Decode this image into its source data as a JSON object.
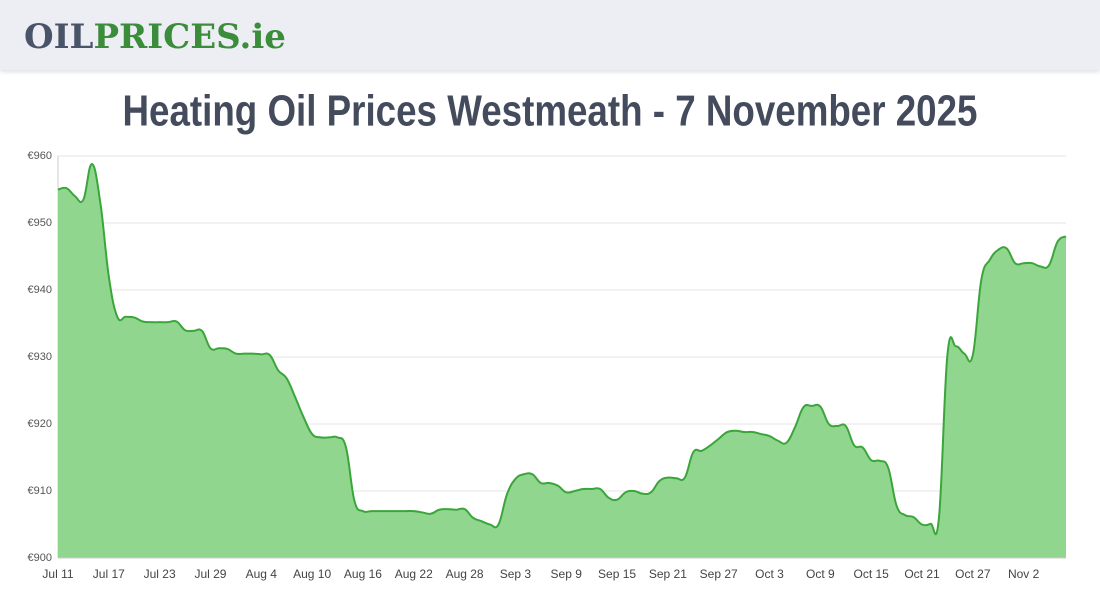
{
  "logo": {
    "first": "OIL",
    "second": "PRICES.ie"
  },
  "chart_data": {
    "type": "area",
    "title": "Heating Oil Prices Westmeath - 7 November 2025",
    "categories": [
      "Jul 11",
      null,
      null,
      null,
      null,
      null,
      "Jul 17",
      null,
      null,
      null,
      null,
      null,
      "Jul 23",
      null,
      null,
      null,
      null,
      null,
      "Jul 29",
      null,
      null,
      null,
      null,
      null,
      "Aug 4",
      null,
      null,
      null,
      null,
      null,
      "Aug 10",
      null,
      null,
      null,
      null,
      null,
      "Aug 16",
      null,
      null,
      null,
      null,
      null,
      "Aug 22",
      null,
      null,
      null,
      null,
      null,
      "Aug 28",
      null,
      null,
      null,
      null,
      null,
      "Sep 3",
      null,
      null,
      null,
      null,
      null,
      "Sep 9",
      null,
      null,
      null,
      null,
      null,
      "Sep 15",
      null,
      null,
      null,
      null,
      null,
      "Sep 21",
      null,
      null,
      null,
      null,
      null,
      "Sep 27",
      null,
      null,
      null,
      null,
      null,
      "Oct 3",
      null,
      null,
      null,
      null,
      null,
      "Oct 9",
      null,
      null,
      null,
      null,
      null,
      "Oct 15",
      null,
      null,
      null,
      null,
      null,
      "Oct 21",
      null,
      null,
      null,
      null,
      null,
      "Oct 27",
      null,
      null,
      null,
      null,
      null,
      "Nov 2",
      null,
      null,
      null,
      null,
      null
    ],
    "values": [
      955,
      955.2,
      954,
      953.5,
      958.8,
      953,
      942,
      936,
      936,
      935.9,
      935.3,
      935.2,
      935.2,
      935.2,
      935.3,
      934,
      933.9,
      933.9,
      931.3,
      931.3,
      931.2,
      930.5,
      930.5,
      930.5,
      930.4,
      930.3,
      928,
      926.8,
      924,
      921,
      918.5,
      918,
      918,
      918,
      916.5,
      908.5,
      907,
      907,
      907,
      907,
      907,
      907,
      907,
      906.8,
      906.6,
      907.2,
      907.3,
      907.2,
      907.3,
      906,
      905.5,
      905,
      905,
      909.5,
      911.8,
      912.5,
      912.5,
      911.2,
      911.2,
      910.8,
      909.8,
      910,
      910.3,
      910.3,
      910.3,
      909,
      908.7,
      909.8,
      910,
      909.6,
      909.8,
      911.5,
      912,
      911.9,
      912,
      915.8,
      916,
      916.8,
      917.8,
      918.8,
      919,
      918.8,
      918.8,
      918.5,
      918.2,
      917.5,
      917.2,
      919.5,
      922.5,
      922.7,
      922.6,
      920,
      919.7,
      919.7,
      916.8,
      916.5,
      914.6,
      914.5,
      913.5,
      907.8,
      906.4,
      906.1,
      905,
      905.1,
      906,
      930.3,
      931.6,
      930.5,
      930.3,
      941.5,
      944.5,
      946,
      946.2,
      944,
      944,
      944,
      943.5,
      943.7,
      947.2,
      948
    ],
    "color": "#3aa63a",
    "fill": "#91d68f",
    "ylim": [
      900,
      960
    ],
    "yticks": [
      {
        "value": 900,
        "label": "€900"
      },
      {
        "value": 910,
        "label": "€910"
      },
      {
        "value": 920,
        "label": "€920"
      },
      {
        "value": 930,
        "label": "€930"
      },
      {
        "value": 940,
        "label": "€940"
      },
      {
        "value": 950,
        "label": "€950"
      },
      {
        "value": 960,
        "label": "€960"
      }
    ],
    "grid": true
  }
}
